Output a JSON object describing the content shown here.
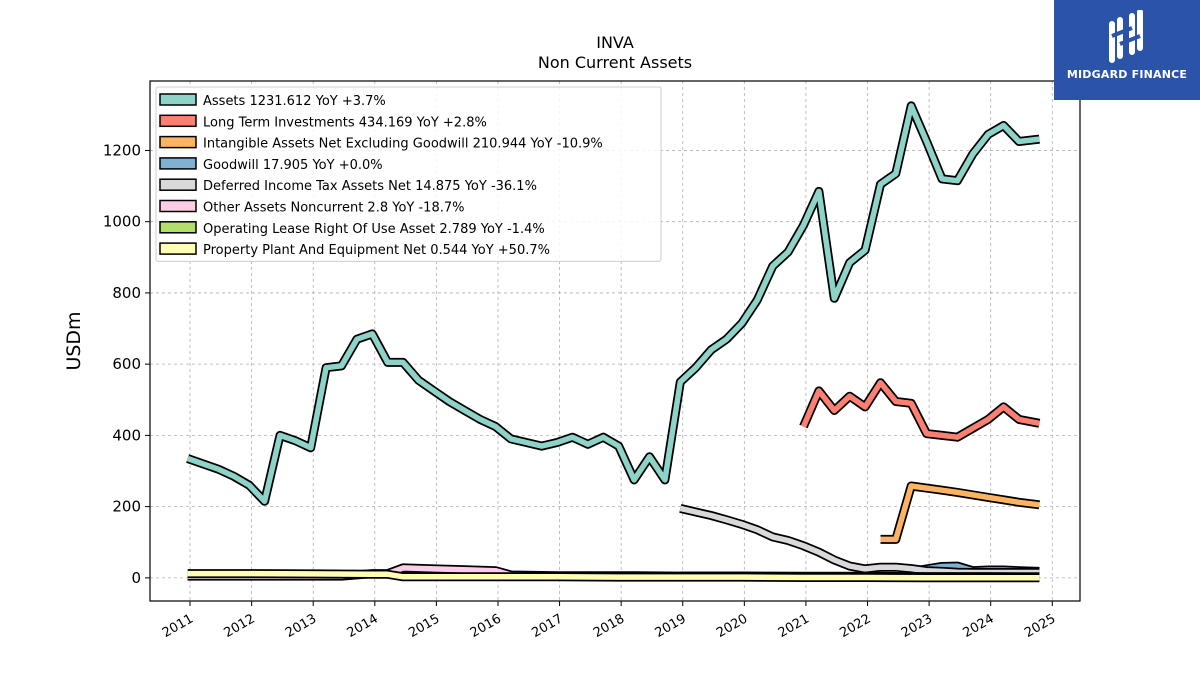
{
  "chart_data": {
    "type": "line",
    "title": "INVA",
    "subtitle": "Non Current  Assets",
    "ylabel": "USDm",
    "xlabel": "",
    "ylim": [
      -65,
      1395
    ],
    "xlim": [
      2010.35,
      2025.45
    ],
    "yticks": [
      0,
      200,
      400,
      600,
      800,
      1000,
      1200
    ],
    "xticks": [
      "2011",
      "2012",
      "2013",
      "2014",
      "2015",
      "2016",
      "2017",
      "2018",
      "2019",
      "2020",
      "2021",
      "2022",
      "2023",
      "2024",
      "2025"
    ],
    "grid": true,
    "legend_position": "top-left",
    "series": [
      {
        "name": "Assets  1231.612 YoY +3.7%",
        "color": "#8dd3c7",
        "x": [
          2010.96,
          2011.21,
          2011.46,
          2011.71,
          2011.96,
          2012.21,
          2012.46,
          2012.71,
          2012.96,
          2013.21,
          2013.46,
          2013.71,
          2013.96,
          2014.21,
          2014.46,
          2014.71,
          2014.96,
          2015.21,
          2015.46,
          2015.71,
          2015.96,
          2016.21,
          2016.46,
          2016.71,
          2016.96,
          2017.21,
          2017.46,
          2017.71,
          2017.96,
          2018.21,
          2018.46,
          2018.71,
          2018.96,
          2019.21,
          2019.46,
          2019.71,
          2019.96,
          2020.21,
          2020.46,
          2020.71,
          2020.96,
          2021.21,
          2021.46,
          2021.71,
          2021.96,
          2022.21,
          2022.46,
          2022.71,
          2022.96,
          2023.21,
          2023.46,
          2023.71,
          2023.96,
          2024.21,
          2024.46,
          2024.79
        ],
        "y": [
          335,
          320,
          305,
          285,
          260,
          215,
          400,
          385,
          365,
          590,
          595,
          670,
          685,
          605,
          605,
          555,
          525,
          495,
          470,
          445,
          425,
          390,
          380,
          370,
          380,
          395,
          375,
          395,
          370,
          275,
          340,
          275,
          550,
          590,
          640,
          670,
          715,
          780,
          875,
          915,
          990,
          1085,
          785,
          885,
          920,
          1105,
          1135,
          1325,
          1225,
          1120,
          1115,
          1190,
          1245,
          1270,
          1225,
          1232
        ]
      },
      {
        "name": "Long Term Investments  434.169 YoY +2.8%",
        "color": "#fb8072",
        "x": [
          2020.96,
          2021.21,
          2021.46,
          2021.71,
          2021.96,
          2022.21,
          2022.46,
          2022.71,
          2022.96,
          2023.21,
          2023.46,
          2023.71,
          2023.96,
          2024.21,
          2024.46,
          2024.79
        ],
        "y": [
          425,
          525,
          470,
          510,
          480,
          548,
          495,
          490,
          405,
          400,
          395,
          420,
          445,
          480,
          445,
          434
        ]
      },
      {
        "name": "Intangible Assets Net Excluding Goodwill  210.944 YoY -10.9%",
        "color": "#fdb462",
        "x": [
          2022.21,
          2022.46,
          2022.71,
          2022.96,
          2023.21,
          2023.46,
          2023.71,
          2023.96,
          2024.21,
          2024.46,
          2024.79
        ],
        "y": [
          108,
          108,
          258,
          252,
          246,
          240,
          233,
          226,
          219,
          212,
          205
        ]
      },
      {
        "name": "Goodwill  17.905 YoY +0.0%",
        "color": "#80b1d3",
        "x": [
          2022.71,
          2022.96,
          2023.21,
          2023.46,
          2023.71,
          2023.96,
          2024.21,
          2024.46,
          2024.79
        ],
        "y": [
          18,
          25,
          32,
          33,
          20,
          22,
          22,
          20,
          18
        ]
      },
      {
        "name": "Deferred Income Tax Assets Net  14.875 YoY -36.1%",
        "color": "#d9d9d9",
        "x": [
          2018.96,
          2019.21,
          2019.46,
          2019.71,
          2019.96,
          2020.21,
          2020.46,
          2020.71,
          2020.96,
          2021.21,
          2021.46,
          2021.71,
          2021.96,
          2022.21,
          2022.46,
          2022.71,
          2022.96,
          2023.21,
          2023.46,
          2023.71,
          2023.96,
          2024.21,
          2024.46,
          2024.79
        ],
        "y": [
          195,
          185,
          175,
          163,
          150,
          135,
          115,
          105,
          90,
          72,
          50,
          33,
          25,
          30,
          30,
          26,
          20,
          18,
          16,
          15,
          15,
          15,
          15,
          15
        ]
      },
      {
        "name": "Other Assets Noncurrent  2.8 YoY -18.7%",
        "color": "#fccde5",
        "x": [
          2010.96,
          2011.46,
          2011.96,
          2012.46,
          2012.96,
          2013.46,
          2013.96,
          2014.21,
          2014.46,
          2014.96,
          2015.46,
          2015.96,
          2016.21,
          2016.96,
          2017.96,
          2018.96,
          2019.96,
          2020.96,
          2021.96,
          2022.96,
          2023.96,
          2024.79
        ],
        "y": [
          5,
          5,
          5,
          5,
          5,
          5,
          12,
          12,
          28,
          25,
          23,
          20,
          8,
          6,
          6,
          5,
          5,
          4,
          4,
          3,
          3,
          2.8
        ]
      },
      {
        "name": "Operating Lease Right Of Use Asset  2.789 YoY -1.4%",
        "color": "#b3de69",
        "x": [
          2018.96,
          2019.96,
          2020.96,
          2021.96,
          2022.96,
          2023.96,
          2024.79
        ],
        "y": [
          5,
          5,
          4,
          4,
          3,
          3,
          2.8
        ]
      },
      {
        "name": "Property Plant And Equipment Net  0.544 YoY +50.7%",
        "color": "#ffffb3",
        "x": [
          2010.96,
          2011.96,
          2012.96,
          2013.96,
          2014.21,
          2014.46,
          2014.96,
          2015.96,
          2016.96,
          2017.96,
          2018.96,
          2019.96,
          2020.96,
          2021.96,
          2022.96,
          2023.96,
          2024.79
        ],
        "y": [
          12,
          12,
          11,
          10,
          10,
          3,
          3,
          3,
          3,
          2,
          2,
          2,
          1,
          1,
          0.5,
          0.5,
          0.5
        ]
      }
    ]
  },
  "logo": {
    "text": "MIDGARD FINANCE"
  }
}
